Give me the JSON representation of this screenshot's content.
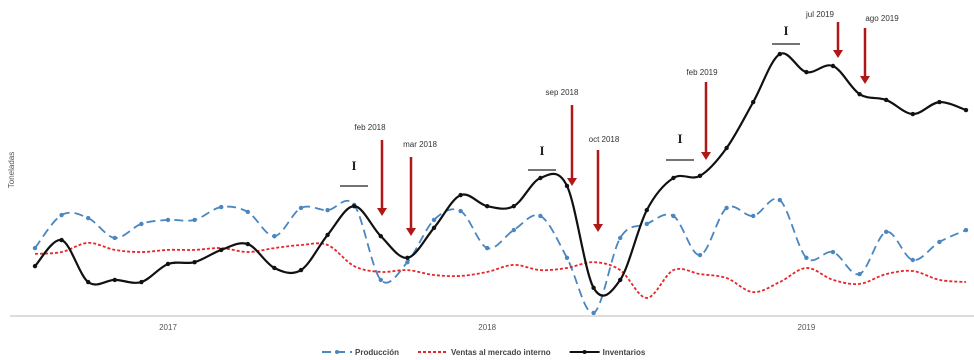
{
  "chart_data": {
    "type": "line",
    "y_label": "Toneladas",
    "categories": [
      null,
      null,
      null,
      null,
      null,
      "2017",
      null,
      null,
      null,
      null,
      null,
      null,
      null,
      null,
      null,
      null,
      null,
      "2018",
      null,
      null,
      null,
      null,
      null,
      null,
      null,
      null,
      null,
      null,
      null,
      "2019",
      null,
      null,
      null,
      null,
      null,
      null
    ],
    "ylim": [
      0,
      100
    ],
    "series": [
      {
        "name": "Producción",
        "color": "#4a86c0",
        "style": "dashed",
        "markers": true,
        "values": [
          22.2,
          33.0,
          32.0,
          25.5,
          30.1,
          31.4,
          31.4,
          35.6,
          34.0,
          26.1,
          35.3,
          34.6,
          36.3,
          11.8,
          17.6,
          31.4,
          34.3,
          22.2,
          28.1,
          32.7,
          19.0,
          1,
          25.5,
          30.1,
          32.7,
          19.9,
          35.3,
          32.7,
          37.9,
          19.0,
          20.9,
          13.7,
          27.5,
          18.3,
          24.2,
          28.1
        ]
      },
      {
        "name": "Ventas al mercado interno",
        "color": "#e8262a",
        "style": "dotted",
        "markers": false,
        "values": [
          20.3,
          20.9,
          23.9,
          21.6,
          20.9,
          21.6,
          21.6,
          22.2,
          20.9,
          22.2,
          23.2,
          23.2,
          16.3,
          14.4,
          15.0,
          13.4,
          13.1,
          14.4,
          16.7,
          15.0,
          15.7,
          17.6,
          15.0,
          5.9,
          15.0,
          13.7,
          12.4,
          7.8,
          11.1,
          15.7,
          11.8,
          10.5,
          13.7,
          14.7,
          11.8,
          11.1
        ]
      },
      {
        "name": "Inventarios",
        "color": "#111111",
        "style": "solid",
        "markers": true,
        "values": [
          16.3,
          24.8,
          11.1,
          11.8,
          11.1,
          17.0,
          17.6,
          21.6,
          23.5,
          15.7,
          15.0,
          26.5,
          35.9,
          26.1,
          19.0,
          28.8,
          39.5,
          35.9,
          35.9,
          45.1,
          42.5,
          9.2,
          11.8,
          34.6,
          45.1,
          45.8,
          54.9,
          69.9,
          85.6,
          79.7,
          81.7,
          72.5,
          70.6,
          66.0,
          69.9,
          67.3
        ]
      }
    ],
    "annotations": [
      "feb 2018",
      "mar 2018",
      "sep 2018",
      "oct 2018",
      "feb 2019",
      "jul 2019",
      "ago 2019"
    ],
    "markers": [
      "I",
      "I",
      "I",
      "I"
    ]
  }
}
